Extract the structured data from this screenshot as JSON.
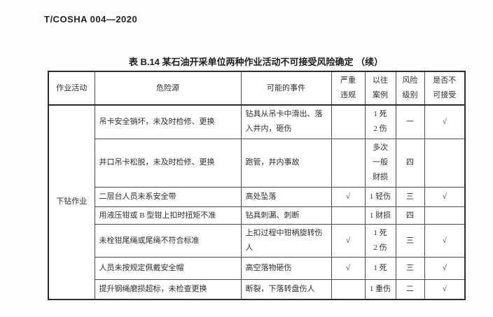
{
  "page": {
    "doc_code": "T/COSHA 004—2020",
    "table_title": "表 B.14  某石油开采单位两种作业活动不可接受风险确定 （续）"
  },
  "table": {
    "headers": {
      "activity": "作业活动",
      "hazard": "危险源",
      "event": "可能的事件",
      "violation": "严重\n违规",
      "cases": "以往\n案例",
      "level": "风险\n级别",
      "acceptable": "是否不\n可接受"
    },
    "activity": "下钻作业",
    "check_mark": "√",
    "rows": [
      {
        "hazard": "吊卡安全销坏，未及时检修、更换",
        "event": "钻具从吊卡中滑出、落入井内，砸伤",
        "violation": "",
        "cases": "1 死\n2 伤",
        "level": "一",
        "unacceptable": "√"
      },
      {
        "hazard": "井口吊卡松脱，未及时检修、更换",
        "event": "跑管，井内事故",
        "violation": "",
        "cases": "多次\n一般\n财损",
        "level": "四",
        "unacceptable": ""
      },
      {
        "hazard": "二层台人员未系安全带",
        "event": "高处坠落",
        "violation": "√",
        "cases": "1 轻伤",
        "level": "三",
        "unacceptable": "√"
      },
      {
        "hazard": "用液压钳或 B 型钳上扣时扭矩不准",
        "event": "钻具刺漏、刺断",
        "violation": "",
        "cases": "1 财损",
        "level": "四",
        "unacceptable": ""
      },
      {
        "hazard": "未栓钳尾绳或尾绳不符合标准",
        "event": "上扣过程中钳柄旋转伤人",
        "violation": "√",
        "cases": "1 死\n2 伤",
        "level": "三",
        "unacceptable": "√"
      },
      {
        "hazard": "人员未按规定佩戴安全帽",
        "event": "高空落物砸伤",
        "violation": "√",
        "cases": "1 死",
        "level": "三",
        "unacceptable": "√"
      },
      {
        "hazard": "提升钢绳磨损超标，未检查更换",
        "event": "断裂，下落转盘伤人",
        "violation": "",
        "cases": "1 重伤",
        "level": "二",
        "unacceptable": "√"
      }
    ]
  }
}
